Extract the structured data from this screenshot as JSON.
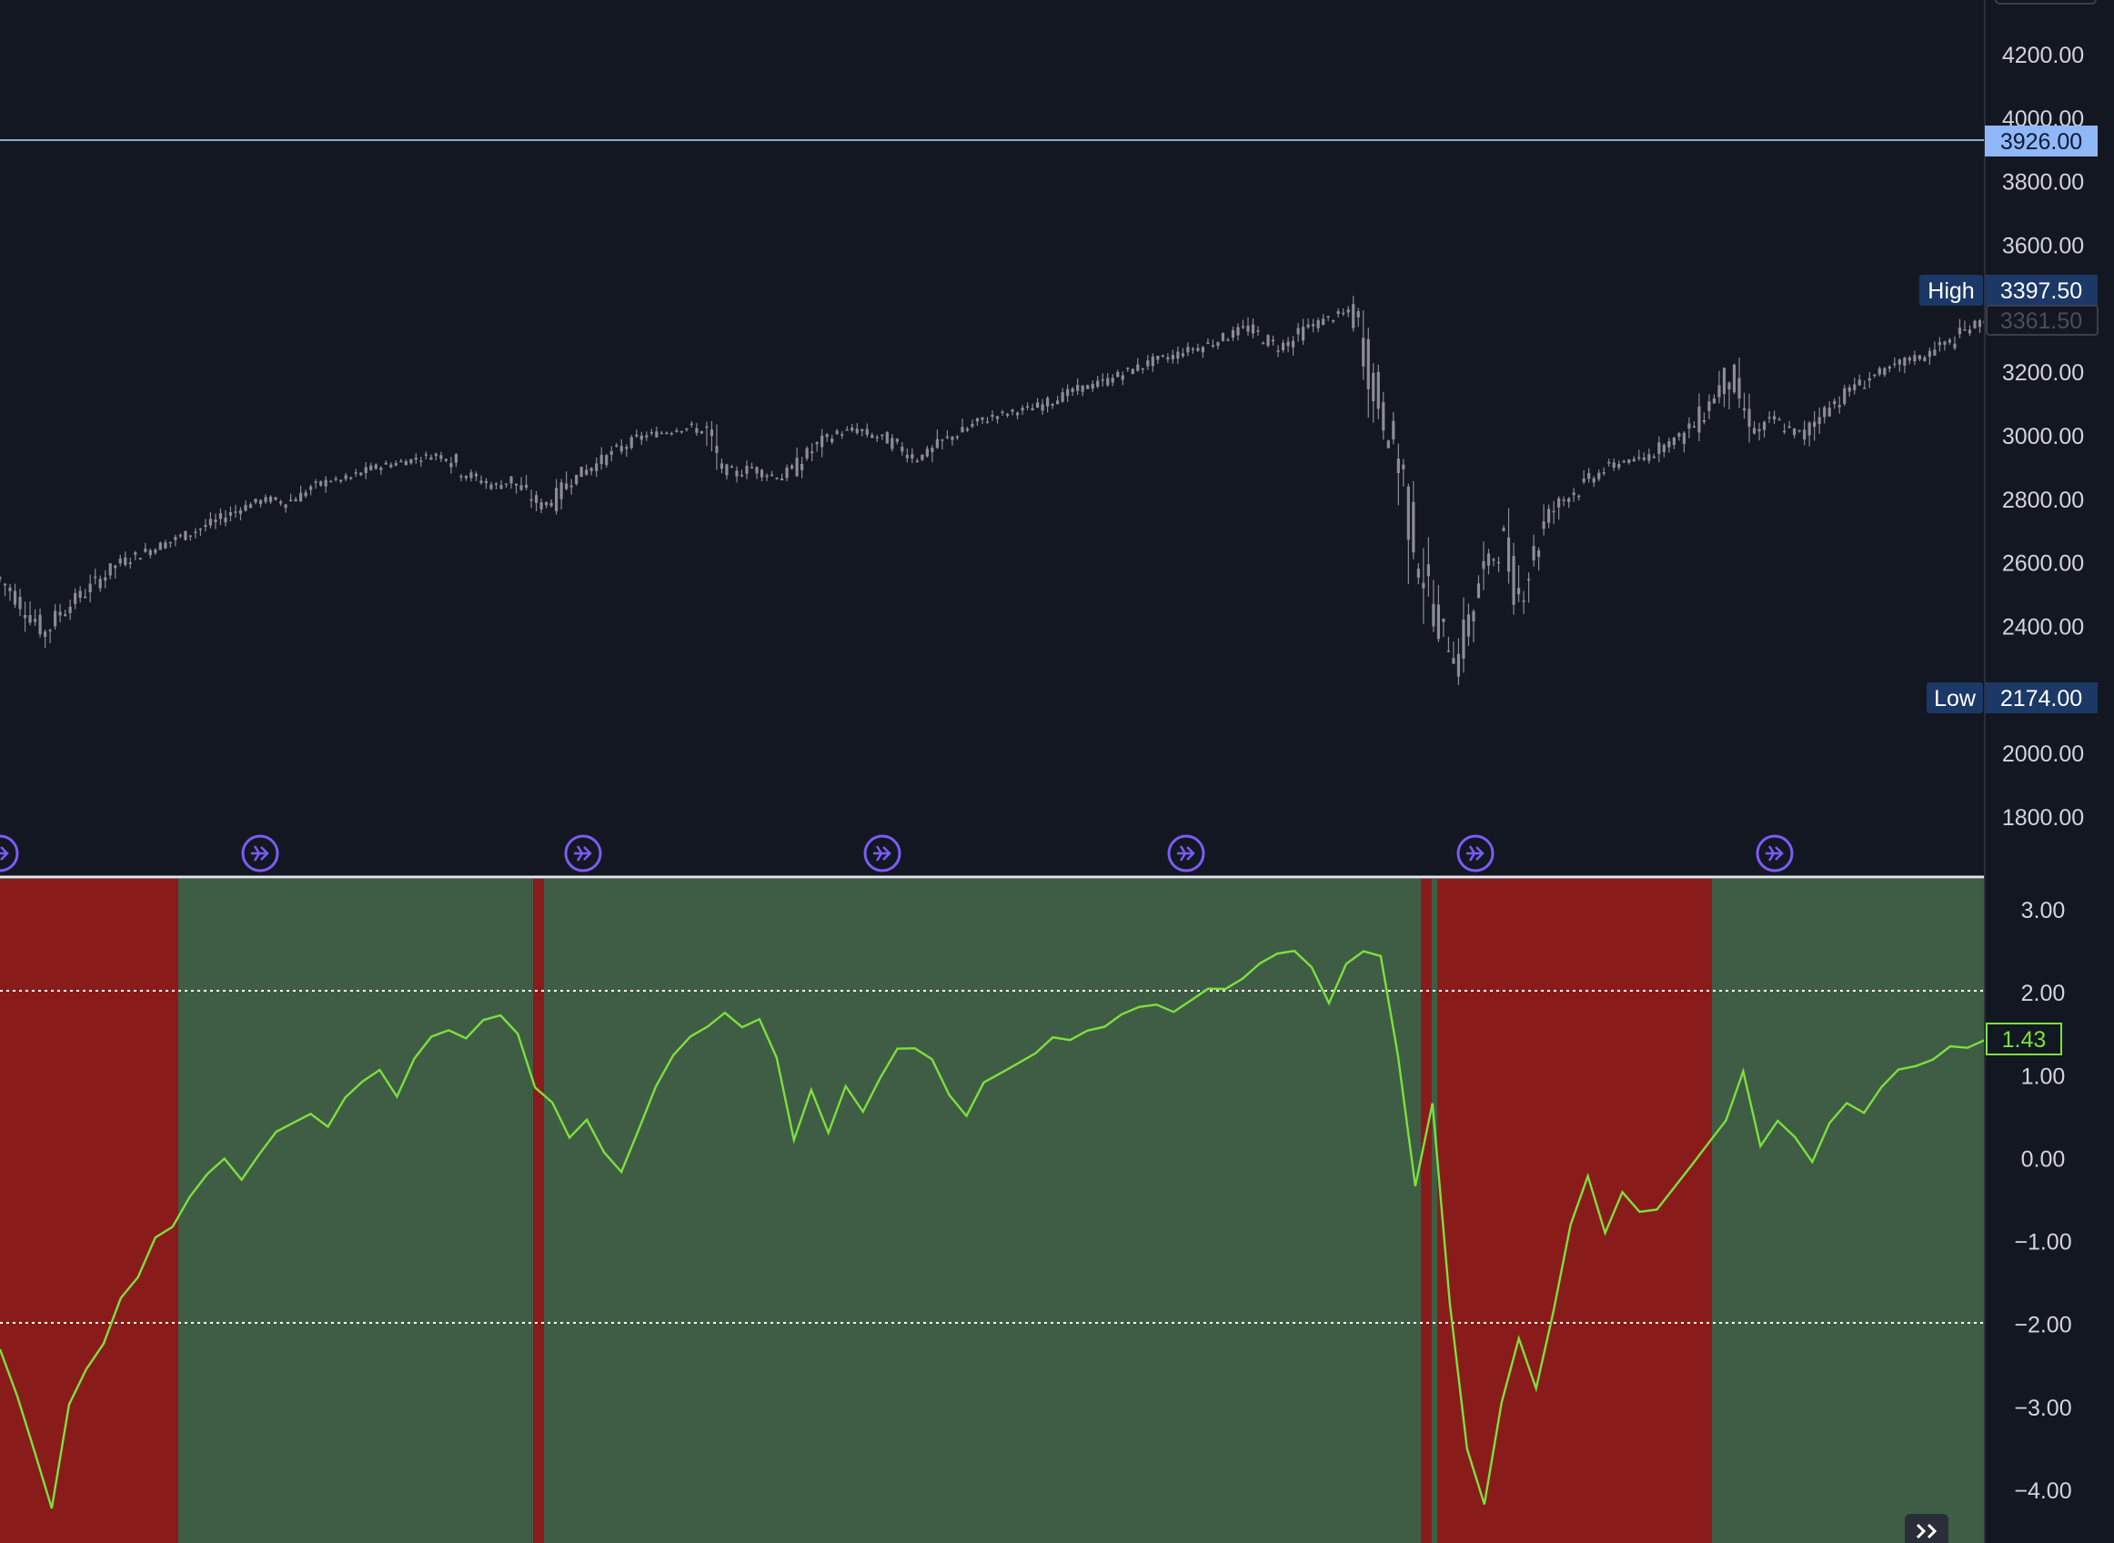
{
  "colors": {
    "background": "#131722",
    "candle": "#8a8d96",
    "axis_text": "#d1d4dc",
    "ref_line": "#8fa6c8",
    "ref_label_bg": "#90b8f8",
    "ref_label_text": "#0c1a33",
    "high_low_bg": "#1c3866",
    "oscillator_line": "#7ce03c",
    "bull_zone": "#3f5d45",
    "bear_zone": "#891c1a",
    "event_marker": "#7b5cf5",
    "separator": "#e6e8ee"
  },
  "icons": {
    "event_marker": "arrow-circle-icon",
    "expand": "double-chevron-right-icon"
  },
  "price_pane": {
    "ref_line": {
      "value": 3926,
      "label": "3926.00"
    },
    "high": {
      "tag": "High",
      "value": 3397.5,
      "label": "3397.50"
    },
    "last": {
      "value": 3361.5,
      "label": "3361.50"
    },
    "low": {
      "tag": "Low",
      "value": 2174,
      "label": "2174.00"
    }
  },
  "oscillator_pane": {
    "last": {
      "value": 1.43,
      "label": "1.43"
    },
    "levels": [
      2.0,
      -2.0
    ]
  },
  "chart_data": [
    {
      "type": "line",
      "series": [
        {
          "values": [
            2550,
            2500,
            2440,
            2380,
            2440,
            2480,
            2520,
            2560,
            2600,
            2620,
            2640,
            2660,
            2680,
            2700,
            2720,
            2745,
            2770,
            2790,
            2800,
            2790,
            2810,
            2840,
            2860,
            2860,
            2880,
            2900,
            2910,
            2920,
            2930,
            2940,
            2930,
            2880,
            2860,
            2840,
            2860,
            2820,
            2780,
            2800,
            2860,
            2890,
            2920,
            2950,
            2980,
            3000,
            3010,
            3020,
            3025,
            3010,
            2900,
            2880,
            2900,
            2880,
            2870,
            2900,
            2950,
            2990,
            3010,
            3020,
            3000,
            2990,
            2960,
            2930,
            2950,
            2990,
            3010,
            3040,
            3060,
            3070,
            3080,
            3090,
            3110,
            3130,
            3150,
            3160,
            3180,
            3200,
            3220,
            3240,
            3250,
            3270,
            3280,
            3300,
            3320,
            3340,
            3310,
            3280,
            3300,
            3340,
            3360,
            3380,
            3390,
            3240,
            3060,
            2950,
            2700,
            2520,
            2380,
            2300,
            2450,
            2600,
            2650,
            2500,
            2620,
            2750,
            2800,
            2830,
            2870,
            2900,
            2920,
            2920,
            2950,
            2980,
            3000,
            3050,
            3120,
            3200,
            3080,
            3010,
            3050,
            3020,
            3000,
            3060,
            3100,
            3140,
            3170,
            3200,
            3210,
            3240,
            3250,
            3280,
            3300,
            3340,
            3360
          ],
          "ylim": [
            1700,
            4300
          ]
        }
      ],
      "ylim": [
        1700,
        4300
      ],
      "y_ticks": [
        "4200.00",
        "4000.00",
        "3800.00",
        "3600.00",
        "3200.00",
        "3000.00",
        "2800.00",
        "2600.00",
        "2400.00",
        "2000.00",
        "1800.00"
      ]
    },
    {
      "type": "line",
      "series": [
        {
          "values": [
            -2.3,
            -2.8,
            -3.6,
            -4.2,
            -3.0,
            -2.5,
            -2.2,
            -1.7,
            -1.4,
            -1.0,
            -0.8,
            -0.5,
            -0.2,
            0.0,
            -0.2,
            0.1,
            0.3,
            0.5,
            0.6,
            0.4,
            0.8,
            1.0,
            1.1,
            0.7,
            1.2,
            1.4,
            1.5,
            1.5,
            1.6,
            1.7,
            1.5,
            0.8,
            0.6,
            0.3,
            0.5,
            0.1,
            -0.2,
            0.3,
            0.9,
            1.2,
            1.4,
            1.6,
            1.7,
            1.6,
            1.7,
            1.2,
            0.2,
            0.8,
            0.3,
            0.9,
            0.5,
            1.0,
            1.4,
            1.3,
            1.2,
            0.8,
            0.5,
            0.9,
            1.0,
            1.2,
            1.3,
            1.4,
            1.5,
            1.6,
            1.6,
            1.7,
            1.8,
            1.8,
            1.7,
            1.9,
            2.0,
            2.1,
            2.2,
            2.3,
            2.4,
            2.5,
            2.3,
            1.8,
            2.3,
            2.5,
            2.4,
            1.2,
            -0.3,
            0.6,
            -1.8,
            -3.5,
            -4.1,
            -3.0,
            -2.2,
            -2.8,
            -1.8,
            -0.8,
            -0.2,
            -0.9,
            -0.4,
            -0.7,
            -0.6,
            -0.3,
            -0.1,
            0.2,
            0.5,
            1.1,
            0.2,
            0.5,
            0.3,
            0.0,
            0.4,
            0.7,
            0.6,
            0.9,
            1.0,
            1.1,
            1.2,
            1.3,
            1.4,
            1.43
          ],
          "ylim": [
            -4.6,
            3.4
          ]
        }
      ],
      "ylim": [
        -4.6,
        3.4
      ],
      "y_ticks": [
        "3.00",
        "2.00",
        "1.00",
        "0.00",
        "−1.00",
        "−2.00",
        "−3.00",
        "−4.00"
      ]
    }
  ]
}
